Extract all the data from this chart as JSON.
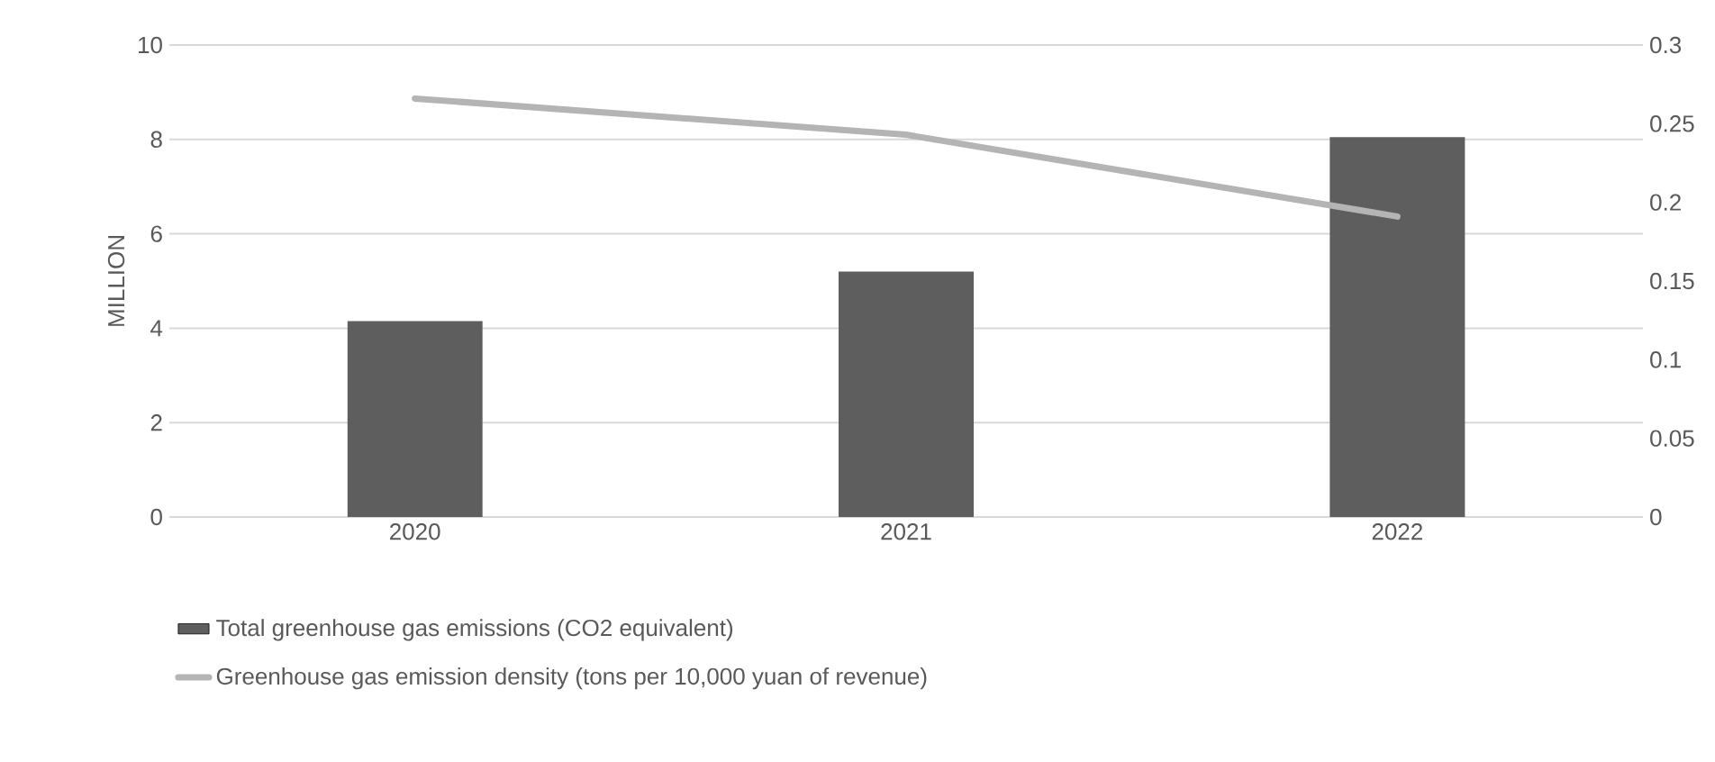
{
  "chart_data": {
    "type": "bar",
    "ylabel": "MILLION",
    "categories": [
      "2020",
      "2021",
      "2022"
    ],
    "series": [
      {
        "name": "Total greenhouse gas emissions (CO2 equivalent)",
        "color": "#5e5e5e",
        "values": [
          4.15,
          5.2,
          8.05
        ]
      },
      {
        "type": "line",
        "name": "Greenhouse gas emission density (tons per 10,000 yuan of revenue)",
        "color": "#b4b4b4",
        "values": [
          0.266,
          0.243,
          0.191
        ],
        "axis": "y2"
      }
    ],
    "ylim": [
      0,
      10
    ],
    "yticks": [
      0,
      2,
      4,
      6,
      8,
      10
    ],
    "y2lim": [
      0,
      0.3
    ],
    "y2ticks": [
      0,
      0.05,
      0.1,
      0.15,
      0.2,
      0.25,
      0.3
    ],
    "grid": "y",
    "legend": "bottom",
    "marker": "none",
    "line_style": "solid"
  }
}
